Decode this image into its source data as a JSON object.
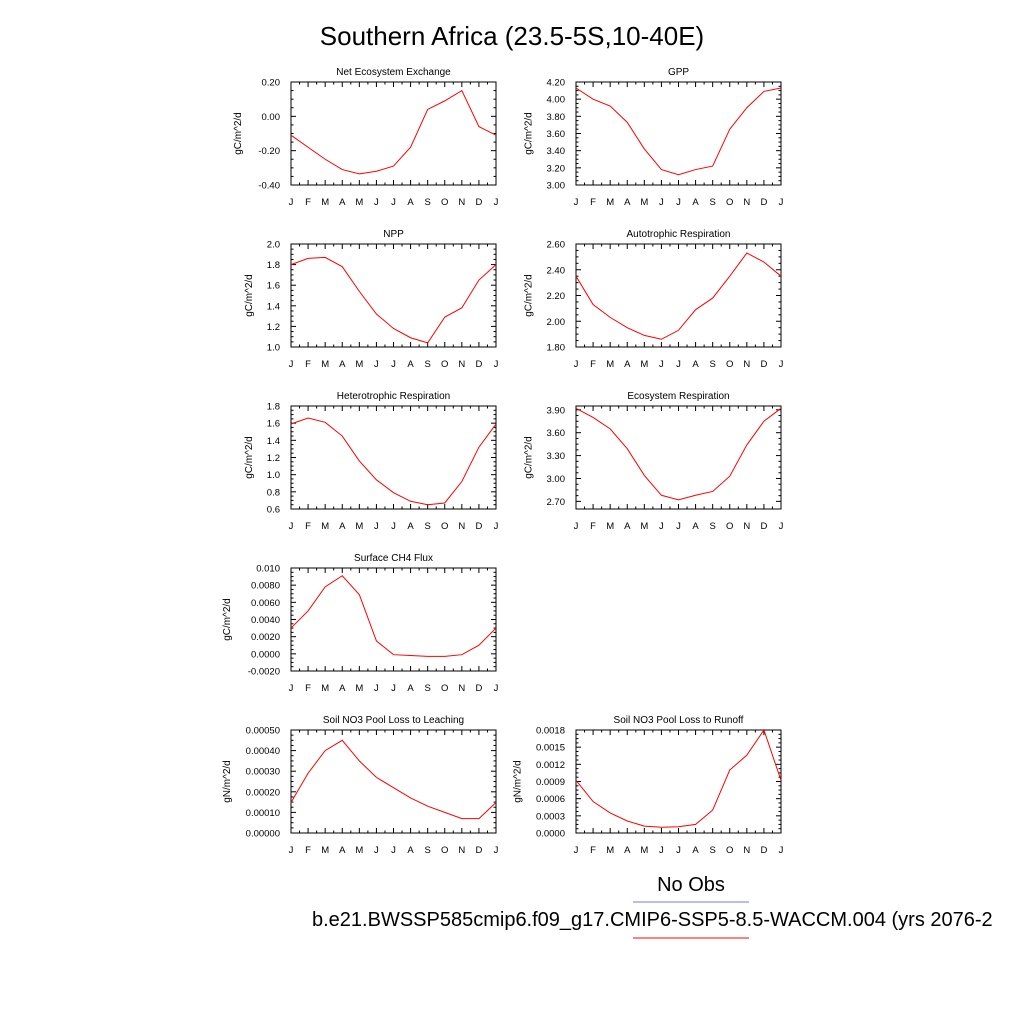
{
  "figure": {
    "title": "Southern Africa (23.5-5S,10-40E)",
    "legend": {
      "obs_label": "No Obs",
      "obs_color": "#7777ee",
      "model_label": "b.e21.BWSSP585cmip6.f09_g17.CMIP6-SSP5-8.5-WACCM.004 (yrs 2076-2",
      "model_color": "#ff0000"
    }
  },
  "chart_data": [
    {
      "type": "line",
      "title": "Net Ecosystem Exchange",
      "ylabel": "gC/m^2/d",
      "categories": [
        "J",
        "F",
        "M",
        "A",
        "M",
        "J",
        "J",
        "A",
        "S",
        "O",
        "N",
        "D",
        "J"
      ],
      "ylim": [
        -0.4,
        0.2
      ],
      "yticks": [
        "-0.40",
        "-0.20",
        "0.00",
        "0.20"
      ],
      "values": [
        -0.11,
        -0.18,
        -0.25,
        -0.31,
        -0.335,
        -0.32,
        -0.29,
        -0.18,
        0.04,
        0.09,
        0.15,
        -0.06,
        -0.11
      ],
      "line_color": "#ff0000"
    },
    {
      "type": "line",
      "title": "GPP",
      "ylabel": "gC/m^2/d",
      "categories": [
        "J",
        "F",
        "M",
        "A",
        "M",
        "J",
        "J",
        "A",
        "S",
        "O",
        "N",
        "D",
        "J"
      ],
      "ylim": [
        3.0,
        4.2
      ],
      "yticks": [
        "3.00",
        "3.20",
        "3.40",
        "3.60",
        "3.80",
        "4.00",
        "4.20"
      ],
      "values": [
        4.13,
        4.0,
        3.92,
        3.73,
        3.42,
        3.18,
        3.12,
        3.18,
        3.22,
        3.65,
        3.9,
        4.09,
        4.13
      ],
      "line_color": "#ff0000"
    },
    {
      "type": "line",
      "title": "NPP",
      "ylabel": "gC/m^2/d",
      "categories": [
        "J",
        "F",
        "M",
        "A",
        "M",
        "J",
        "J",
        "A",
        "S",
        "O",
        "N",
        "D",
        "J"
      ],
      "ylim": [
        1.0,
        2.0
      ],
      "yticks": [
        "1.0",
        "1.2",
        "1.4",
        "1.6",
        "1.8",
        "2.0"
      ],
      "values": [
        1.8,
        1.86,
        1.87,
        1.78,
        1.54,
        1.32,
        1.18,
        1.09,
        1.04,
        1.29,
        1.38,
        1.65,
        1.8
      ],
      "line_color": "#ff0000"
    },
    {
      "type": "line",
      "title": "Autotrophic Respiration",
      "ylabel": "gC/m^2/d",
      "categories": [
        "J",
        "F",
        "M",
        "A",
        "M",
        "J",
        "J",
        "A",
        "S",
        "O",
        "N",
        "D",
        "J"
      ],
      "ylim": [
        1.8,
        2.6
      ],
      "yticks": [
        "1.80",
        "2.00",
        "2.20",
        "2.40",
        "2.60"
      ],
      "values": [
        2.35,
        2.13,
        2.03,
        1.95,
        1.89,
        1.86,
        1.93,
        2.09,
        2.18,
        2.35,
        2.53,
        2.46,
        2.35
      ],
      "line_color": "#ff0000"
    },
    {
      "type": "line",
      "title": "Heterotrophic Respiration",
      "ylabel": "gC/m^2/d",
      "categories": [
        "J",
        "F",
        "M",
        "A",
        "M",
        "J",
        "J",
        "A",
        "S",
        "O",
        "N",
        "D",
        "J"
      ],
      "ylim": [
        0.6,
        1.8
      ],
      "yticks": [
        "0.6",
        "0.8",
        "1.0",
        "1.2",
        "1.4",
        "1.6",
        "1.8"
      ],
      "values": [
        1.59,
        1.66,
        1.61,
        1.45,
        1.16,
        0.94,
        0.79,
        0.69,
        0.65,
        0.67,
        0.92,
        1.32,
        1.59
      ],
      "line_color": "#ff0000"
    },
    {
      "type": "line",
      "title": "Ecosystem Respiration",
      "ylabel": "gC/m^2/d",
      "categories": [
        "J",
        "F",
        "M",
        "A",
        "M",
        "J",
        "J",
        "A",
        "S",
        "O",
        "N",
        "D",
        "J"
      ],
      "ylim": [
        2.6,
        3.95
      ],
      "yticks": [
        "2.70",
        "3.00",
        "3.30",
        "3.60",
        "3.90"
      ],
      "values": [
        3.92,
        3.8,
        3.65,
        3.39,
        3.04,
        2.78,
        2.72,
        2.78,
        2.83,
        3.03,
        3.44,
        3.75,
        3.92
      ],
      "line_color": "#ff0000"
    },
    {
      "type": "line",
      "title": "Surface CH4 Flux",
      "ylabel": "gC/m^2/d",
      "categories": [
        "J",
        "F",
        "M",
        "A",
        "M",
        "J",
        "J",
        "A",
        "S",
        "O",
        "N",
        "D",
        "J"
      ],
      "ylim": [
        -0.002,
        0.01
      ],
      "yticks": [
        "-0.0020",
        "0.0000",
        "0.0020",
        "0.0040",
        "0.0060",
        "0.0080",
        "0.010"
      ],
      "values": [
        0.003,
        0.005,
        0.0078,
        0.0091,
        0.0069,
        0.0015,
        -0.0001,
        -0.0002,
        -0.0003,
        -0.0003,
        -0.0001,
        0.001,
        0.003
      ],
      "line_color": "#ff0000"
    },
    {
      "type": "line",
      "title": "Soil NO3 Pool Loss to Leaching",
      "ylabel": "gN/m^2/d",
      "categories": [
        "J",
        "F",
        "M",
        "A",
        "M",
        "J",
        "J",
        "A",
        "S",
        "O",
        "N",
        "D",
        "J"
      ],
      "ylim": [
        0.0,
        0.0005
      ],
      "yticks": [
        "0.00000",
        "0.00010",
        "0.00020",
        "0.00030",
        "0.00040",
        "0.00050"
      ],
      "values": [
        0.000148,
        0.00029,
        0.0004,
        0.00045,
        0.00035,
        0.00027,
        0.00022,
        0.00017,
        0.00013,
        0.0001,
        7e-05,
        7e-05,
        0.000148
      ],
      "line_color": "#ff0000"
    },
    {
      "type": "line",
      "title": "Soil NO3 Pool Loss to Runoff",
      "ylabel": "gN/m^2/d",
      "categories": [
        "J",
        "F",
        "M",
        "A",
        "M",
        "J",
        "J",
        "A",
        "S",
        "O",
        "N",
        "D",
        "J"
      ],
      "ylim": [
        0.0,
        0.0018
      ],
      "yticks": [
        "0.0000",
        "0.0003",
        "0.0006",
        "0.0009",
        "0.0012",
        "0.0015",
        "0.0018"
      ],
      "values": [
        0.00092,
        0.00055,
        0.00035,
        0.00021,
        0.00012,
        0.0001,
        0.00011,
        0.00015,
        0.0004,
        0.0011,
        0.00136,
        0.0018,
        0.00092
      ],
      "line_color": "#ff0000"
    }
  ]
}
